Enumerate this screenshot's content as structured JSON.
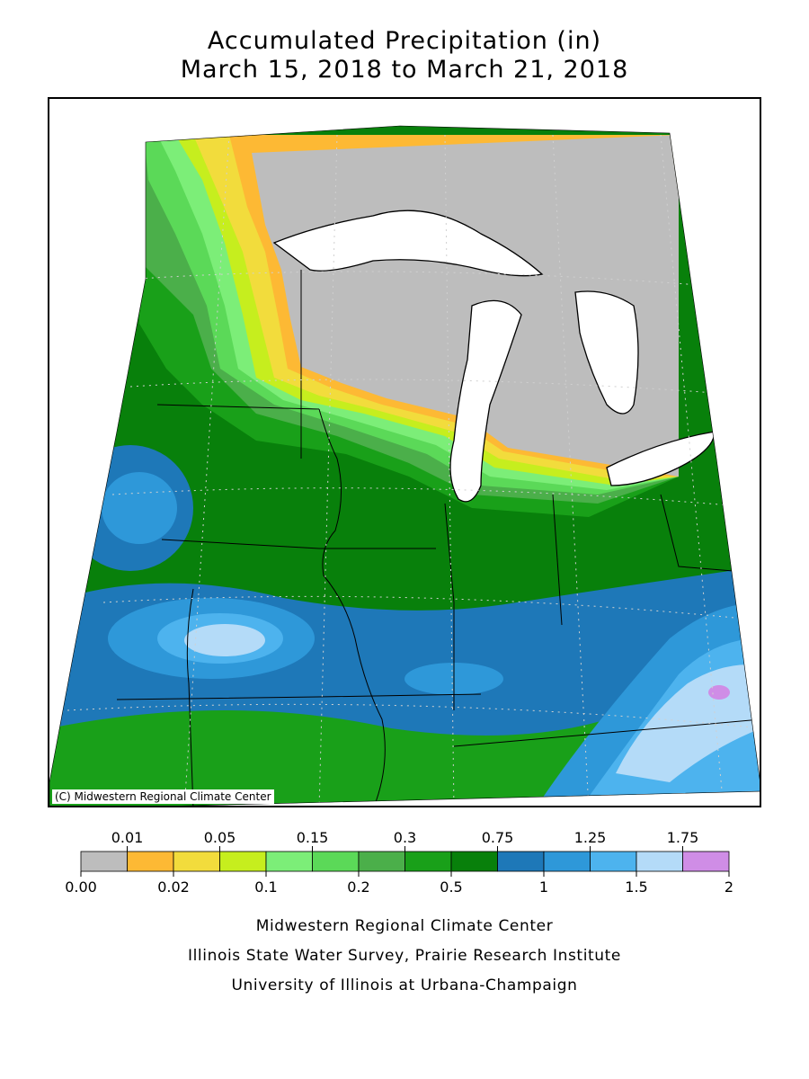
{
  "title": {
    "line1": "Accumulated Precipitation (in)",
    "line2": "March 15, 2018 to March 21, 2018"
  },
  "map": {
    "credit": "(C) Midwestern Regional Climate Center",
    "land_no_data_color": "#ffffff",
    "water_color": "#ffffff"
  },
  "legend": {
    "bins": [
      {
        "from": "0.00",
        "to": "0.01",
        "color": "#bdbdbd"
      },
      {
        "from": "0.01",
        "to": "0.02",
        "color": "#fdb934"
      },
      {
        "from": "0.02",
        "to": "0.05",
        "color": "#f2dc3c"
      },
      {
        "from": "0.05",
        "to": "0.1",
        "color": "#c6ee1e"
      },
      {
        "from": "0.1",
        "to": "0.15",
        "color": "#7cee78"
      },
      {
        "from": "0.15",
        "to": "0.2",
        "color": "#5bd958"
      },
      {
        "from": "0.2",
        "to": "0.3",
        "color": "#4baf4a"
      },
      {
        "from": "0.3",
        "to": "0.5",
        "color": "#19a019"
      },
      {
        "from": "0.5",
        "to": "0.75",
        "color": "#08800b"
      },
      {
        "from": "0.75",
        "to": "1",
        "color": "#1e78b8"
      },
      {
        "from": "1",
        "to": "1.25",
        "color": "#2e98d9"
      },
      {
        "from": "1.25",
        "to": "1.5",
        "color": "#4db3ee"
      },
      {
        "from": "1.5",
        "to": "1.75",
        "color": "#b4dbf8"
      },
      {
        "from": "1.75",
        "to": "2",
        "color": "#cf8de6"
      }
    ],
    "top_labels": [
      "0.01",
      "0.05",
      "0.15",
      "0.3",
      "0.75",
      "1.25",
      "1.75"
    ],
    "bottom_labels": [
      "0.00",
      "0.02",
      "0.1",
      "0.2",
      "0.5",
      "1",
      "1.5",
      "2"
    ]
  },
  "footer": {
    "line1": "Midwestern Regional Climate Center",
    "line2": "Illinois State Water Survey, Prairie Research Institute",
    "line3": "University of Illinois at Urbana-Champaign"
  }
}
